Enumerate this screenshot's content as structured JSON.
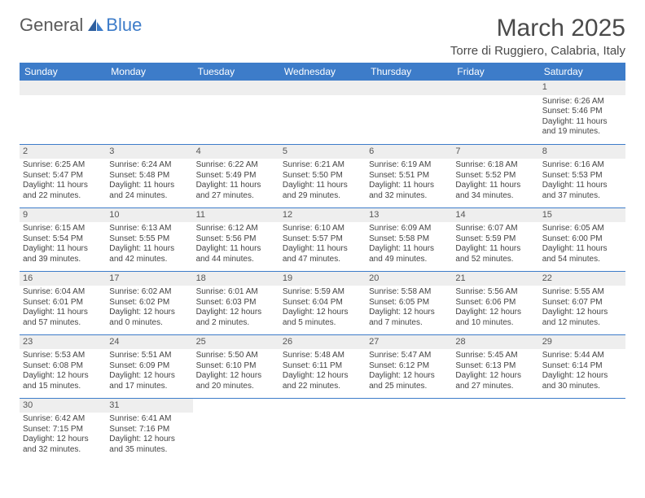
{
  "logo": {
    "text1": "General",
    "text2": "Blue"
  },
  "title": "March 2025",
  "location": "Torre di Ruggiero, Calabria, Italy",
  "header_bg": "#3d7cc9",
  "header_fg": "#ffffff",
  "daynum_bg": "#eeeeee",
  "border_color": "#3d7cc9",
  "days": [
    "Sunday",
    "Monday",
    "Tuesday",
    "Wednesday",
    "Thursday",
    "Friday",
    "Saturday"
  ],
  "weeks": [
    [
      null,
      null,
      null,
      null,
      null,
      null,
      {
        "n": "1",
        "sr": "Sunrise: 6:26 AM",
        "ss": "Sunset: 5:46 PM",
        "dl": "Daylight: 11 hours and 19 minutes."
      }
    ],
    [
      {
        "n": "2",
        "sr": "Sunrise: 6:25 AM",
        "ss": "Sunset: 5:47 PM",
        "dl": "Daylight: 11 hours and 22 minutes."
      },
      {
        "n": "3",
        "sr": "Sunrise: 6:24 AM",
        "ss": "Sunset: 5:48 PM",
        "dl": "Daylight: 11 hours and 24 minutes."
      },
      {
        "n": "4",
        "sr": "Sunrise: 6:22 AM",
        "ss": "Sunset: 5:49 PM",
        "dl": "Daylight: 11 hours and 27 minutes."
      },
      {
        "n": "5",
        "sr": "Sunrise: 6:21 AM",
        "ss": "Sunset: 5:50 PM",
        "dl": "Daylight: 11 hours and 29 minutes."
      },
      {
        "n": "6",
        "sr": "Sunrise: 6:19 AM",
        "ss": "Sunset: 5:51 PM",
        "dl": "Daylight: 11 hours and 32 minutes."
      },
      {
        "n": "7",
        "sr": "Sunrise: 6:18 AM",
        "ss": "Sunset: 5:52 PM",
        "dl": "Daylight: 11 hours and 34 minutes."
      },
      {
        "n": "8",
        "sr": "Sunrise: 6:16 AM",
        "ss": "Sunset: 5:53 PM",
        "dl": "Daylight: 11 hours and 37 minutes."
      }
    ],
    [
      {
        "n": "9",
        "sr": "Sunrise: 6:15 AM",
        "ss": "Sunset: 5:54 PM",
        "dl": "Daylight: 11 hours and 39 minutes."
      },
      {
        "n": "10",
        "sr": "Sunrise: 6:13 AM",
        "ss": "Sunset: 5:55 PM",
        "dl": "Daylight: 11 hours and 42 minutes."
      },
      {
        "n": "11",
        "sr": "Sunrise: 6:12 AM",
        "ss": "Sunset: 5:56 PM",
        "dl": "Daylight: 11 hours and 44 minutes."
      },
      {
        "n": "12",
        "sr": "Sunrise: 6:10 AM",
        "ss": "Sunset: 5:57 PM",
        "dl": "Daylight: 11 hours and 47 minutes."
      },
      {
        "n": "13",
        "sr": "Sunrise: 6:09 AM",
        "ss": "Sunset: 5:58 PM",
        "dl": "Daylight: 11 hours and 49 minutes."
      },
      {
        "n": "14",
        "sr": "Sunrise: 6:07 AM",
        "ss": "Sunset: 5:59 PM",
        "dl": "Daylight: 11 hours and 52 minutes."
      },
      {
        "n": "15",
        "sr": "Sunrise: 6:05 AM",
        "ss": "Sunset: 6:00 PM",
        "dl": "Daylight: 11 hours and 54 minutes."
      }
    ],
    [
      {
        "n": "16",
        "sr": "Sunrise: 6:04 AM",
        "ss": "Sunset: 6:01 PM",
        "dl": "Daylight: 11 hours and 57 minutes."
      },
      {
        "n": "17",
        "sr": "Sunrise: 6:02 AM",
        "ss": "Sunset: 6:02 PM",
        "dl": "Daylight: 12 hours and 0 minutes."
      },
      {
        "n": "18",
        "sr": "Sunrise: 6:01 AM",
        "ss": "Sunset: 6:03 PM",
        "dl": "Daylight: 12 hours and 2 minutes."
      },
      {
        "n": "19",
        "sr": "Sunrise: 5:59 AM",
        "ss": "Sunset: 6:04 PM",
        "dl": "Daylight: 12 hours and 5 minutes."
      },
      {
        "n": "20",
        "sr": "Sunrise: 5:58 AM",
        "ss": "Sunset: 6:05 PM",
        "dl": "Daylight: 12 hours and 7 minutes."
      },
      {
        "n": "21",
        "sr": "Sunrise: 5:56 AM",
        "ss": "Sunset: 6:06 PM",
        "dl": "Daylight: 12 hours and 10 minutes."
      },
      {
        "n": "22",
        "sr": "Sunrise: 5:55 AM",
        "ss": "Sunset: 6:07 PM",
        "dl": "Daylight: 12 hours and 12 minutes."
      }
    ],
    [
      {
        "n": "23",
        "sr": "Sunrise: 5:53 AM",
        "ss": "Sunset: 6:08 PM",
        "dl": "Daylight: 12 hours and 15 minutes."
      },
      {
        "n": "24",
        "sr": "Sunrise: 5:51 AM",
        "ss": "Sunset: 6:09 PM",
        "dl": "Daylight: 12 hours and 17 minutes."
      },
      {
        "n": "25",
        "sr": "Sunrise: 5:50 AM",
        "ss": "Sunset: 6:10 PM",
        "dl": "Daylight: 12 hours and 20 minutes."
      },
      {
        "n": "26",
        "sr": "Sunrise: 5:48 AM",
        "ss": "Sunset: 6:11 PM",
        "dl": "Daylight: 12 hours and 22 minutes."
      },
      {
        "n": "27",
        "sr": "Sunrise: 5:47 AM",
        "ss": "Sunset: 6:12 PM",
        "dl": "Daylight: 12 hours and 25 minutes."
      },
      {
        "n": "28",
        "sr": "Sunrise: 5:45 AM",
        "ss": "Sunset: 6:13 PM",
        "dl": "Daylight: 12 hours and 27 minutes."
      },
      {
        "n": "29",
        "sr": "Sunrise: 5:44 AM",
        "ss": "Sunset: 6:14 PM",
        "dl": "Daylight: 12 hours and 30 minutes."
      }
    ],
    [
      {
        "n": "30",
        "sr": "Sunrise: 6:42 AM",
        "ss": "Sunset: 7:15 PM",
        "dl": "Daylight: 12 hours and 32 minutes."
      },
      {
        "n": "31",
        "sr": "Sunrise: 6:41 AM",
        "ss": "Sunset: 7:16 PM",
        "dl": "Daylight: 12 hours and 35 minutes."
      },
      null,
      null,
      null,
      null,
      null
    ]
  ]
}
